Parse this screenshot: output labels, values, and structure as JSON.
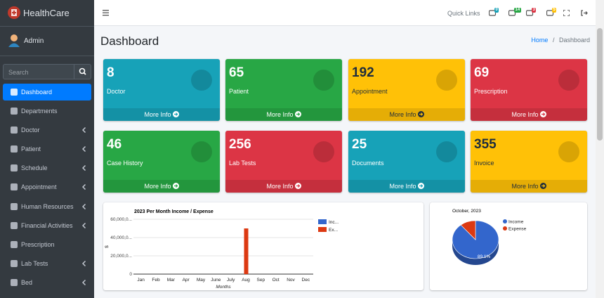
{
  "sidebar": {
    "brand": "HealthCare",
    "user": "Admin",
    "search_placeholder": "Search",
    "menu": [
      {
        "label": "Dashboard",
        "active": true,
        "submenu": false
      },
      {
        "label": "Departments",
        "active": false,
        "submenu": false
      },
      {
        "label": "Doctor",
        "active": false,
        "submenu": true
      },
      {
        "label": "Patient",
        "active": false,
        "submenu": true
      },
      {
        "label": "Schedule",
        "active": false,
        "submenu": true
      },
      {
        "label": "Appointment",
        "active": false,
        "submenu": true
      },
      {
        "label": "Human Resources",
        "active": false,
        "submenu": true
      },
      {
        "label": "Financial Activities",
        "active": false,
        "submenu": true
      },
      {
        "label": "Prescription",
        "active": false,
        "submenu": false
      },
      {
        "label": "Lab Tests",
        "active": false,
        "submenu": true
      },
      {
        "label": "Bed",
        "active": false,
        "submenu": true
      }
    ]
  },
  "navbar": {
    "quick_links": "Quick Links",
    "badges": [
      {
        "text": "0",
        "color": "#17a2b8"
      },
      {
        "text": "14",
        "color": "#28a745"
      },
      {
        "text": "3",
        "color": "#dc3545"
      },
      {
        "text": "5",
        "color": "#ffc107"
      }
    ]
  },
  "header": {
    "title": "Dashboard",
    "breadcrumb": [
      "Home",
      "Dashboard"
    ],
    "breadcrumb_separator": "/"
  },
  "cards": [
    {
      "value": 8,
      "label": "Doctor",
      "link": "More Info",
      "color": "#17a2b8",
      "text_color": "#ffffff"
    },
    {
      "value": 65,
      "label": "Patient",
      "link": "More Info",
      "color": "#28a745",
      "text_color": "#ffffff"
    },
    {
      "value": 192,
      "label": "Appointment",
      "link": "More Info",
      "color": "#ffc107",
      "text_color": "#1f2d3d"
    },
    {
      "value": 69,
      "label": "Prescription",
      "link": "More Info",
      "color": "#dc3545",
      "text_color": "#ffffff"
    },
    {
      "value": 46,
      "label": "Case History",
      "link": "More Info",
      "color": "#28a745",
      "text_color": "#ffffff"
    },
    {
      "value": 256,
      "label": "Lab Tests",
      "link": "More Info",
      "color": "#dc3545",
      "text_color": "#ffffff"
    },
    {
      "value": 25,
      "label": "Documents",
      "link": "More Info",
      "color": "#17a2b8",
      "text_color": "#ffffff"
    },
    {
      "value": 355,
      "label": "Invoice",
      "link": "More Info",
      "color": "#ffc107",
      "text_color": "#1f2d3d"
    }
  ],
  "charts": [
    {
      "type": "bar",
      "title": "2023 Per Month Income / Expense",
      "y_label": "$",
      "x_label": "Months",
      "categories": [
        "Jan",
        "Feb",
        "Mar",
        "Apr",
        "May",
        "June",
        "July",
        "Aug",
        "Sep",
        "Oct",
        "Nov",
        "Dec"
      ],
      "series": [
        {
          "name": "Inc...",
          "color": "#3366cc",
          "values": [
            0,
            0,
            0,
            0,
            0,
            0,
            0,
            0,
            0,
            0,
            0,
            0
          ]
        },
        {
          "name": "Ex...",
          "color": "#dc3912",
          "values": [
            0,
            0,
            0,
            0,
            0,
            0,
            0,
            50000000,
            0,
            0,
            0,
            0
          ]
        }
      ],
      "ylim": [
        0,
        60000000
      ],
      "yticks": [
        0,
        {
          "value": 20000000,
          "label": "20,000,0..."
        },
        {
          "value": 40000000,
          "label": "40,000,0..."
        },
        {
          "value": 60000000,
          "label": "60,000,0..."
        }
      ],
      "grid": true
    },
    {
      "type": "pie",
      "title": "October, 2023",
      "categories": [
        "Income",
        "Expense"
      ],
      "values": [
        89.1,
        10.9
      ],
      "value_labels": [
        "89.1%",
        null
      ],
      "colors": [
        "#3366cc",
        "#dc3912"
      ]
    }
  ]
}
